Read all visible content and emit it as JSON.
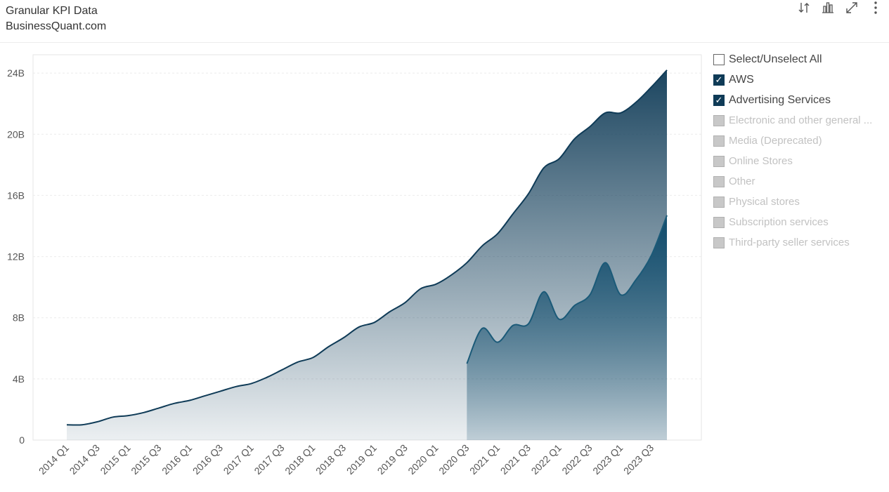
{
  "header": {
    "title": "Granular KPI Data",
    "subtitle": "BusinessQuant.com",
    "tools": [
      "sort-icon",
      "bar-chart-icon",
      "expand-icon",
      "more-icon"
    ]
  },
  "legend": {
    "select_all": "Select/Unselect All",
    "items": [
      {
        "label": "AWS",
        "checked": true
      },
      {
        "label": "Advertising Services",
        "checked": true
      },
      {
        "label": "Electronic and other general ...",
        "checked": false
      },
      {
        "label": "Media (Deprecated)",
        "checked": false
      },
      {
        "label": "Online Stores",
        "checked": false
      },
      {
        "label": "Other",
        "checked": false
      },
      {
        "label": "Physical stores",
        "checked": false
      },
      {
        "label": "Subscription services",
        "checked": false
      },
      {
        "label": "Third-party seller services",
        "checked": false
      }
    ]
  },
  "chart_data": {
    "type": "area",
    "title": "",
    "xlabel": "",
    "ylabel": "",
    "ylim": [
      0,
      25.2
    ],
    "yticks": [
      "0",
      "4B",
      "8B",
      "12B",
      "16B",
      "20B",
      "24B"
    ],
    "ytick_values": [
      0,
      4,
      8,
      12,
      16,
      20,
      24
    ],
    "xtick_labels": [
      "2014 Q1",
      "2014 Q3",
      "2015 Q1",
      "2015 Q3",
      "2016 Q1",
      "2016 Q3",
      "2017 Q1",
      "2017 Q3",
      "2018 Q1",
      "2018 Q3",
      "2019 Q1",
      "2019 Q3",
      "2020 Q1",
      "2020 Q3",
      "2021 Q1",
      "2021 Q3",
      "2022 Q1",
      "2022 Q3",
      "2023 Q1",
      "2023 Q3"
    ],
    "x": [
      "2014 Q1",
      "2014 Q2",
      "2014 Q3",
      "2014 Q4",
      "2015 Q1",
      "2015 Q2",
      "2015 Q3",
      "2015 Q4",
      "2016 Q1",
      "2016 Q2",
      "2016 Q3",
      "2016 Q4",
      "2017 Q1",
      "2017 Q2",
      "2017 Q3",
      "2017 Q4",
      "2018 Q1",
      "2018 Q2",
      "2018 Q3",
      "2018 Q4",
      "2019 Q1",
      "2019 Q2",
      "2019 Q3",
      "2019 Q4",
      "2020 Q1",
      "2020 Q2",
      "2020 Q3",
      "2020 Q4",
      "2021 Q1",
      "2021 Q2",
      "2021 Q3",
      "2021 Q4",
      "2022 Q1",
      "2022 Q2",
      "2022 Q3",
      "2022 Q4",
      "2023 Q1",
      "2023 Q2",
      "2023 Q3",
      "2023 Q4"
    ],
    "units": "billions",
    "grid": true,
    "legend_position": "right",
    "series": [
      {
        "name": "AWS",
        "color": "#0f3b57",
        "values": [
          1.0,
          1.0,
          1.2,
          1.5,
          1.6,
          1.8,
          2.1,
          2.4,
          2.6,
          2.9,
          3.2,
          3.5,
          3.7,
          4.1,
          4.6,
          5.1,
          5.4,
          6.1,
          6.7,
          7.4,
          7.7,
          8.4,
          9.0,
          9.9,
          10.2,
          10.8,
          11.6,
          12.7,
          13.5,
          14.8,
          16.1,
          17.8,
          18.4,
          19.7,
          20.5,
          21.4,
          21.4,
          22.1,
          23.1,
          24.2
        ]
      },
      {
        "name": "Advertising Services",
        "color": "#1b5a78",
        "values": [
          null,
          null,
          null,
          null,
          null,
          null,
          null,
          null,
          null,
          null,
          null,
          null,
          null,
          null,
          null,
          null,
          null,
          null,
          null,
          null,
          null,
          null,
          null,
          null,
          null,
          null,
          5.0,
          7.3,
          6.4,
          7.5,
          7.6,
          9.7,
          7.9,
          8.8,
          9.5,
          11.6,
          9.5,
          10.5,
          12.1,
          14.7
        ]
      }
    ]
  }
}
